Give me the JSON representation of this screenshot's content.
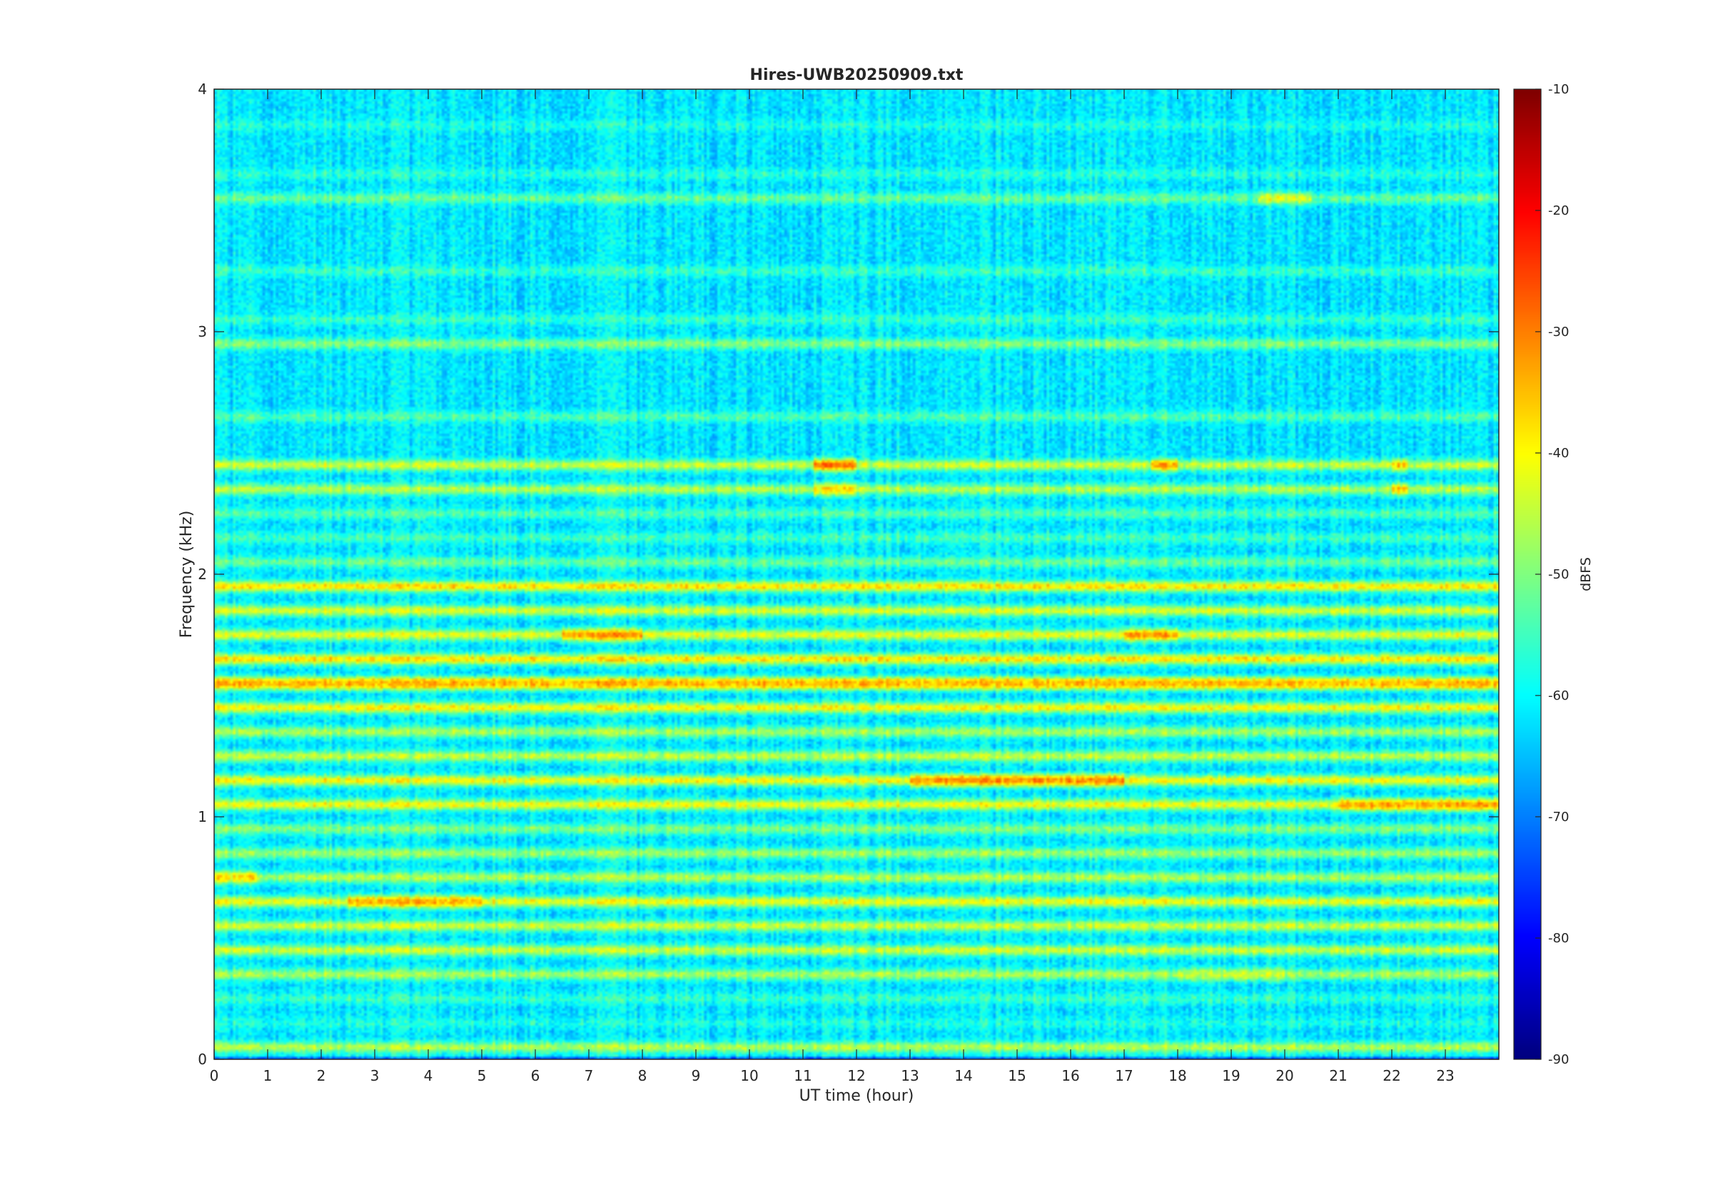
{
  "chart_data": {
    "type": "heatmap",
    "title": "Hires-UWB20250909.txt",
    "xlabel": "UT time (hour)",
    "ylabel": "Frequency (kHz)",
    "xlim": [
      0,
      24
    ],
    "ylim": [
      0,
      4
    ],
    "xticks": [
      0,
      1,
      2,
      3,
      4,
      5,
      6,
      7,
      8,
      9,
      10,
      11,
      12,
      13,
      14,
      15,
      16,
      17,
      18,
      19,
      20,
      21,
      22,
      23
    ],
    "yticks": [
      0,
      1,
      2,
      3,
      4
    ],
    "colorbar": {
      "label": "dBFS",
      "colormap": "jet",
      "clim": [
        -90,
        -10
      ],
      "ticks": [
        -90,
        -80,
        -70,
        -60,
        -50,
        -40,
        -30,
        -20,
        -10
      ]
    },
    "background_level_dbfs": -62,
    "frequency_bands": [
      {
        "f": 0.05,
        "level": -46
      },
      {
        "f": 0.1,
        "level": -70
      },
      {
        "f": 0.15,
        "level": -58
      },
      {
        "f": 0.25,
        "level": -56
      },
      {
        "f": 0.35,
        "level": -47
      },
      {
        "f": 0.45,
        "level": -44
      },
      {
        "f": 0.55,
        "level": -44
      },
      {
        "f": 0.65,
        "level": -41
      },
      {
        "f": 0.75,
        "level": -46
      },
      {
        "f": 0.85,
        "level": -48
      },
      {
        "f": 0.95,
        "level": -50
      },
      {
        "f": 1.05,
        "level": -41
      },
      {
        "f": 1.15,
        "level": -40
      },
      {
        "f": 1.25,
        "level": -45
      },
      {
        "f": 1.35,
        "level": -47
      },
      {
        "f": 1.45,
        "level": -40
      },
      {
        "f": 1.55,
        "level": -36
      },
      {
        "f": 1.65,
        "level": -38
      },
      {
        "f": 1.75,
        "level": -42
      },
      {
        "f": 1.85,
        "level": -43
      },
      {
        "f": 1.95,
        "level": -38
      },
      {
        "f": 2.05,
        "level": -52
      },
      {
        "f": 2.15,
        "level": -55
      },
      {
        "f": 2.25,
        "level": -54
      },
      {
        "f": 2.35,
        "level": -46
      },
      {
        "f": 2.45,
        "level": -44
      },
      {
        "f": 2.65,
        "level": -54
      },
      {
        "f": 2.95,
        "level": -50
      },
      {
        "f": 3.05,
        "level": -56
      },
      {
        "f": 3.25,
        "level": -56
      },
      {
        "f": 3.55,
        "level": -52
      },
      {
        "f": 3.65,
        "level": -57
      },
      {
        "f": 3.85,
        "level": -58
      }
    ],
    "hotspots": [
      {
        "t0": 11.2,
        "t1": 12.0,
        "f": 2.45,
        "level": -30
      },
      {
        "t0": 17.5,
        "t1": 18.0,
        "f": 2.45,
        "level": -33
      },
      {
        "t0": 11.2,
        "t1": 12.0,
        "f": 2.35,
        "level": -38
      },
      {
        "t0": 22.0,
        "t1": 22.3,
        "f": 2.35,
        "level": -36
      },
      {
        "t0": 22.0,
        "t1": 22.3,
        "f": 2.45,
        "level": -36
      },
      {
        "t0": 6.5,
        "t1": 8.0,
        "f": 1.75,
        "level": -32
      },
      {
        "t0": 17.0,
        "t1": 18.0,
        "f": 1.75,
        "level": -33
      },
      {
        "t0": 13.0,
        "t1": 17.0,
        "f": 1.15,
        "level": -32
      },
      {
        "t0": 21.0,
        "t1": 24.0,
        "f": 1.05,
        "level": -33
      },
      {
        "t0": 2.5,
        "t1": 5.0,
        "f": 0.65,
        "level": -35
      },
      {
        "t0": 0.0,
        "t1": 0.8,
        "f": 0.75,
        "level": -38
      },
      {
        "t0": 0.0,
        "t1": 24.0,
        "f": 1.55,
        "level": -35
      },
      {
        "t0": 19.5,
        "t1": 20.5,
        "f": 3.55,
        "level": -42
      },
      {
        "t0": 18.0,
        "t1": 20.0,
        "f": 0.35,
        "level": -44
      }
    ]
  }
}
